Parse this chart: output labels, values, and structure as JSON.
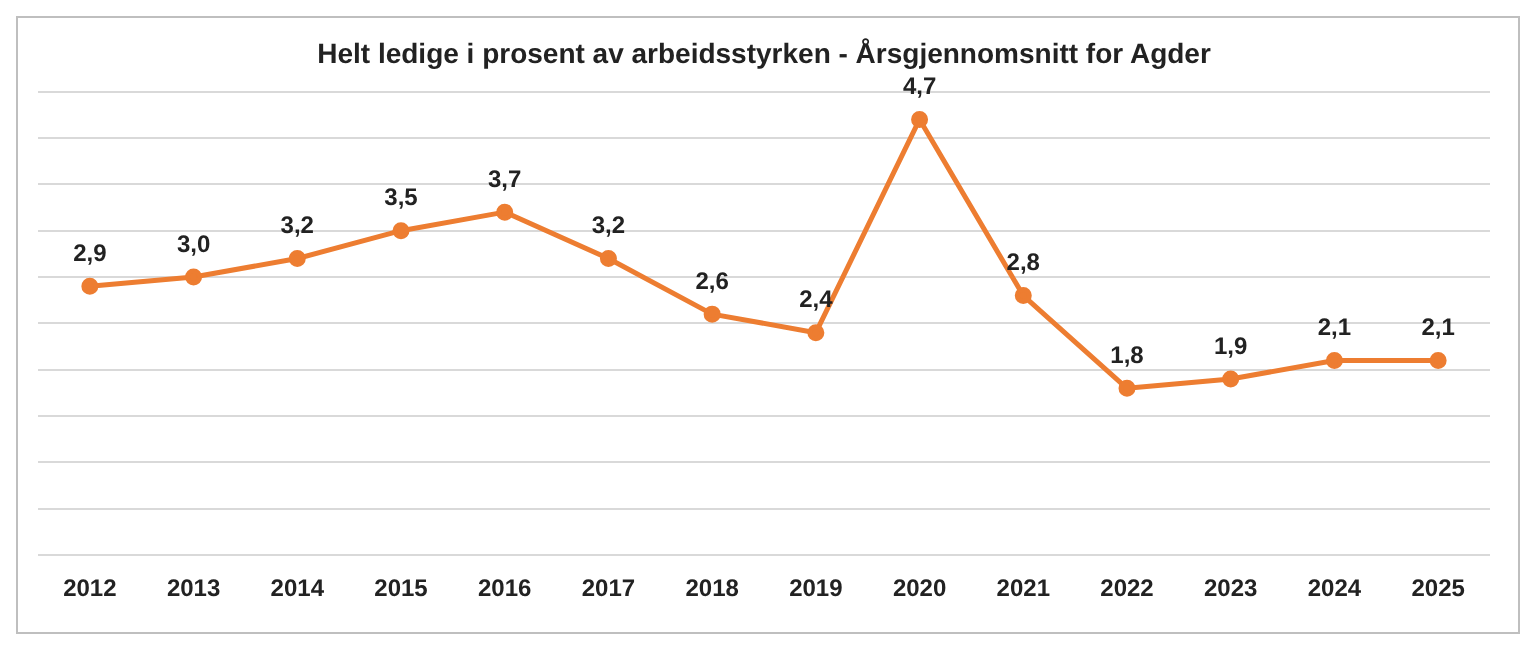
{
  "chart_data": {
    "type": "line",
    "title": "Helt ledige i prosent av arbeidsstyrken - Årsgjennomsnitt for Agder",
    "categories": [
      "2012",
      "2013",
      "2014",
      "2015",
      "2016",
      "2017",
      "2018",
      "2019",
      "2020",
      "2021",
      "2022",
      "2023",
      "2024",
      "2025"
    ],
    "series": [
      {
        "color": "#ed7d31",
        "values": [
          2.9,
          3.0,
          3.2,
          3.5,
          3.7,
          3.2,
          2.6,
          2.4,
          4.7,
          2.8,
          1.8,
          1.9,
          2.1,
          2.1
        ],
        "value_labels": [
          "2,9",
          "3,0",
          "3,2",
          "3,5",
          "3,7",
          "3,2",
          "2,6",
          "2,4",
          "4,7",
          "2,8",
          "1,8",
          "1,9",
          "2,1",
          "2,1"
        ]
      }
    ],
    "ylim": [
      0,
      5
    ],
    "yticks": [
      {
        "value": 0,
        "label": null
      },
      {
        "value": 0.5,
        "label": null
      },
      {
        "value": 1,
        "label": null
      },
      {
        "value": 1.5,
        "label": null
      },
      {
        "value": 2,
        "label": null
      },
      {
        "value": 2.5,
        "label": null
      },
      {
        "value": 3,
        "label": null
      },
      {
        "value": 3.5,
        "label": null
      },
      {
        "value": 4,
        "label": null
      },
      {
        "value": 4.5,
        "label": null
      },
      {
        "value": 5,
        "label": null
      }
    ],
    "tick_labels": "x",
    "grid": "y",
    "legend": false,
    "marker": "circle",
    "line_style": "solid"
  }
}
